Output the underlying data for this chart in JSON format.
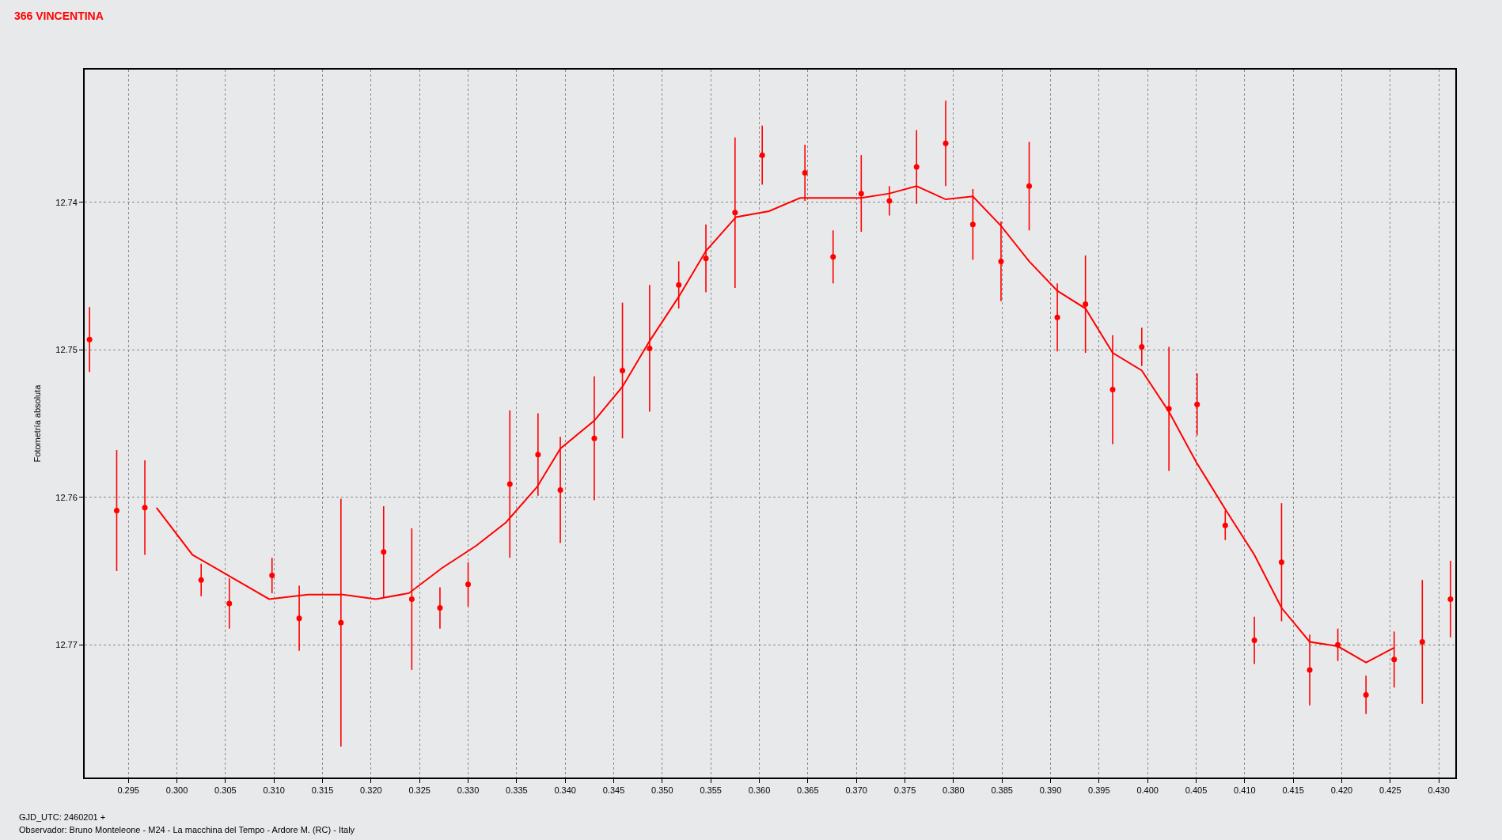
{
  "chart_data": {
    "type": "scatter",
    "title": "366 VINCENTINA",
    "ylabel": "Fotometría absoluta",
    "annotations": [
      "GJD_UTC: 2460201 +",
      "Observador: Bruno Monteleone - M24 - La macchina del Tempo - Ardore M. (RC) - Italy"
    ],
    "xlim": [
      0.2905,
      0.4317
    ],
    "xticks": [
      0.295,
      {
        "value": 0.3,
        "label": "0.300"
      },
      0.305,
      {
        "value": 0.31,
        "label": "0.310"
      },
      0.315,
      {
        "value": 0.32,
        "label": "0.320"
      },
      0.325,
      {
        "value": 0.33,
        "label": "0.330"
      },
      0.335,
      {
        "value": 0.34,
        "label": "0.340"
      },
      0.345,
      {
        "value": 0.35,
        "label": "0.350"
      },
      0.355,
      {
        "value": 0.36,
        "label": "0.360"
      },
      0.365,
      {
        "value": 0.37,
        "label": "0.370"
      },
      0.375,
      {
        "value": 0.38,
        "label": "0.380"
      },
      0.385,
      {
        "value": 0.39,
        "label": "0.390"
      },
      0.395,
      {
        "value": 0.4,
        "label": "0.400"
      },
      0.405,
      {
        "value": 0.41,
        "label": "0.410"
      },
      0.415,
      {
        "value": 0.42,
        "label": "0.420"
      },
      0.425,
      {
        "value": 0.43,
        "label": "0.430"
      }
    ],
    "ylim": [
      12.779,
      12.731
    ],
    "yticks": [
      12.74,
      12.75,
      12.76,
      12.77
    ],
    "grid": true,
    "series": [
      {
        "color": "#ff0000",
        "marker": "circle",
        "x": [
          0.291,
          0.2938,
          0.2967,
          0.3025,
          0.3054,
          0.3098,
          0.3126,
          0.3169,
          0.3213,
          0.3242,
          0.3271,
          0.33,
          0.3343,
          0.3372,
          0.3395,
          0.343,
          0.3459,
          0.3487,
          0.3517,
          0.3545,
          0.3575,
          0.3603,
          0.3647,
          0.3676,
          0.3705,
          0.3734,
          0.3762,
          0.3792,
          0.382,
          0.3849,
          0.3878,
          0.3907,
          0.3936,
          0.3964,
          0.3994,
          0.4022,
          0.4051,
          0.408,
          0.411,
          0.4138,
          0.4167,
          0.4196,
          0.4225,
          0.4254,
          0.4283,
          0.4312
        ],
        "values": [
          12.7493,
          12.7609,
          12.7607,
          12.7656,
          12.7672,
          12.7653,
          12.7682,
          12.7685,
          12.7637,
          12.7669,
          12.7675,
          12.7659,
          12.7591,
          12.7571,
          12.7595,
          12.756,
          12.7514,
          12.7499,
          12.7456,
          12.7438,
          12.7407,
          12.7368,
          12.738,
          12.7437,
          12.7394,
          12.7399,
          12.7376,
          12.736,
          12.7415,
          12.744,
          12.7389,
          12.7478,
          12.7469,
          12.7527,
          12.7498,
          12.754,
          12.7537,
          12.7619,
          12.7697,
          12.7644,
          12.7717,
          12.77,
          12.7734,
          12.771,
          12.7698,
          12.7669
        ],
        "errors": [
          0.0022,
          0.0041,
          0.0032,
          0.0011,
          0.0017,
          0.0012,
          0.0022,
          0.0084,
          0.0031,
          0.0048,
          0.0014,
          0.0015,
          0.005,
          0.0028,
          0.0036,
          0.0042,
          0.0046,
          0.0043,
          0.0016,
          0.0023,
          0.0051,
          0.002,
          0.0019,
          0.0018,
          0.0026,
          0.001,
          0.0025,
          0.0029,
          0.0024,
          0.0027,
          0.003,
          0.0023,
          0.0033,
          0.0037,
          0.0013,
          0.0042,
          0.0021,
          0.001,
          0.0016,
          0.004,
          0.0024,
          0.0011,
          0.0013,
          0.0019,
          0.0042,
          0.0026
        ]
      },
      {
        "type": "line",
        "color": "#ff0000",
        "x": [
          0.2979,
          0.3016,
          0.3095,
          0.3135,
          0.3171,
          0.3205,
          0.3239,
          0.3273,
          0.3308,
          0.3339,
          0.3371,
          0.3395,
          0.343,
          0.3459,
          0.3487,
          0.3517,
          0.3545,
          0.3576,
          0.361,
          0.3642,
          0.3676,
          0.3705,
          0.3734,
          0.3762,
          0.3792,
          0.382,
          0.3849,
          0.3878,
          0.3907,
          0.3936,
          0.3964,
          0.3994,
          0.4022,
          0.405,
          0.408,
          0.411,
          0.4138,
          0.4167,
          0.4196,
          0.4225,
          0.4254
        ],
        "values": [
          12.7607,
          12.7639,
          12.7669,
          12.7666,
          12.7666,
          12.7669,
          12.7665,
          12.7648,
          12.7633,
          12.7617,
          12.7593,
          12.7567,
          12.7548,
          12.7525,
          12.7494,
          12.7464,
          12.7433,
          12.741,
          12.7406,
          12.7397,
          12.7397,
          12.7397,
          12.7394,
          12.7389,
          12.7398,
          12.7396,
          12.7416,
          12.744,
          12.746,
          12.7472,
          12.7502,
          12.7514,
          12.7542,
          12.7576,
          12.7608,
          12.7639,
          12.7675,
          12.7698,
          12.7701,
          12.7712,
          12.7702
        ]
      }
    ]
  }
}
